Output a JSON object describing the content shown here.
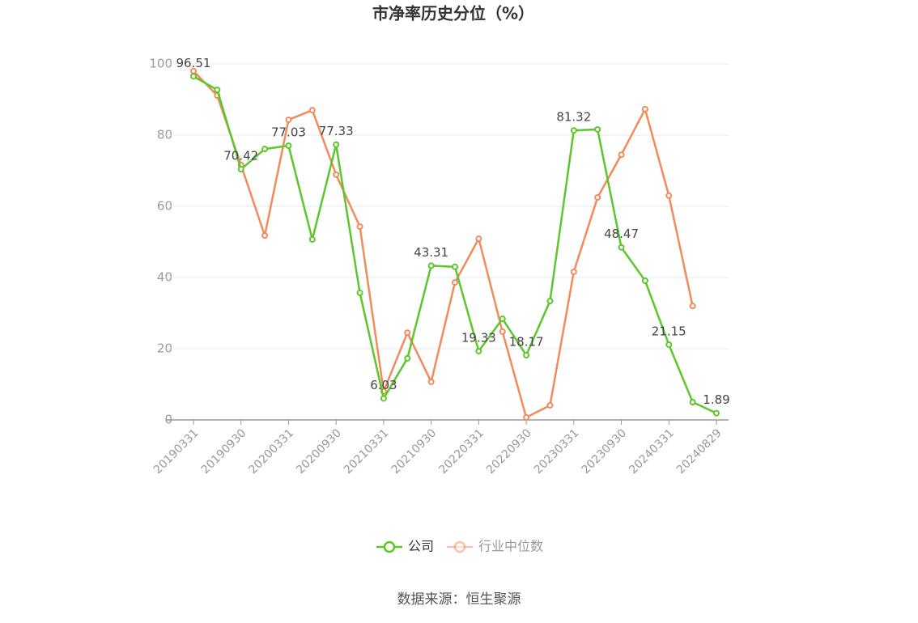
{
  "chart_data": {
    "type": "line",
    "title": "市净率历史分位（%）",
    "categories": [
      "20190331",
      null,
      "20190930",
      null,
      "20200331",
      null,
      "20200930",
      null,
      "20210331",
      null,
      "20210930",
      null,
      "20220331",
      null,
      "20220930",
      null,
      "20230331",
      null,
      "20230930",
      null,
      "20240331",
      null,
      "20240829"
    ],
    "series": [
      {
        "name": "公司",
        "color": "#5cc72b",
        "values": [
          96.51,
          92.7,
          70.42,
          76.1,
          77.03,
          50.7,
          77.33,
          35.7,
          6.03,
          17.3,
          43.31,
          43.0,
          19.33,
          28.4,
          18.17,
          33.4,
          81.32,
          81.6,
          48.47,
          39.1,
          21.15,
          5.0,
          1.89
        ],
        "value_labels": [
          "96.51",
          null,
          "70.42",
          null,
          "77.03",
          null,
          "77.33",
          null,
          "6.03",
          null,
          "43.31",
          null,
          "19.33",
          null,
          "18.17",
          null,
          "81.32",
          null,
          "48.47",
          null,
          "21.15",
          null,
          "1.89"
        ]
      },
      {
        "name": "行业中位数",
        "color": "#f28b5b",
        "values": [
          98.0,
          91.1,
          71.6,
          51.8,
          84.3,
          87.0,
          68.9,
          54.3,
          8.0,
          24.5,
          10.7,
          38.6,
          50.9,
          24.8,
          0.7,
          4.1,
          41.6,
          62.5,
          74.5,
          87.3,
          63.0,
          32.0,
          null
        ]
      }
    ],
    "ylim": [
      0,
      100
    ],
    "yticks": [
      0,
      20,
      40,
      60,
      80,
      100
    ],
    "grid": true,
    "source": "数据来源：恒生聚源"
  }
}
